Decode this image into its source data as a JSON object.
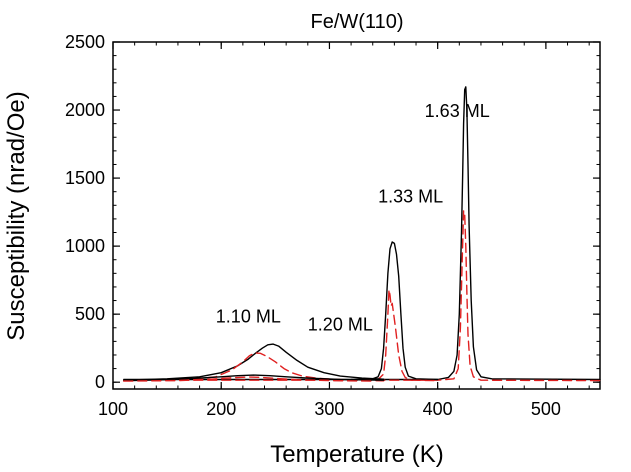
{
  "chart_data": {
    "type": "line",
    "title": "Fe/W(110)",
    "xlabel": "Temperature (K)",
    "ylabel": "Susceptibility (nrad/Oe)",
    "xlim": [
      100,
      550
    ],
    "ylim": [
      -50,
      2500
    ],
    "xticks": [
      100,
      200,
      300,
      400,
      500
    ],
    "yticks": [
      0,
      500,
      1000,
      1500,
      2000,
      2500
    ],
    "grid": false,
    "annotations": [
      {
        "text": "1.63 ML",
        "x": 388,
        "y": 1950
      },
      {
        "text": "1.33 ML",
        "x": 345,
        "y": 1320
      },
      {
        "text": "1.10 ML",
        "x": 195,
        "y": 440
      },
      {
        "text": "1.20 ML",
        "x": 280,
        "y": 380
      }
    ],
    "series": [
      {
        "name": "1.63 ML (real)",
        "color": "#000000",
        "dash": "solid",
        "points": [
          [
            110,
            20
          ],
          [
            300,
            20
          ],
          [
            400,
            20
          ],
          [
            410,
            35
          ],
          [
            415,
            80
          ],
          [
            418,
            200
          ],
          [
            420,
            500
          ],
          [
            422,
            1100
          ],
          [
            423,
            1500
          ],
          [
            424,
            1900
          ],
          [
            425,
            2150
          ],
          [
            426,
            2170
          ],
          [
            427,
            2000
          ],
          [
            428,
            1600
          ],
          [
            429,
            1150
          ],
          [
            431,
            600
          ],
          [
            433,
            260
          ],
          [
            436,
            90
          ],
          [
            440,
            40
          ],
          [
            450,
            25
          ],
          [
            550,
            20
          ]
        ]
      },
      {
        "name": "1.63 ML (imag)",
        "color": "#e02020",
        "dash": "dashed",
        "points": [
          [
            110,
            15
          ],
          [
            400,
            15
          ],
          [
            415,
            25
          ],
          [
            419,
            100
          ],
          [
            421,
            400
          ],
          [
            423,
            1000
          ],
          [
            424,
            1260
          ],
          [
            425,
            1230
          ],
          [
            426,
            1000
          ],
          [
            427,
            650
          ],
          [
            428,
            350
          ],
          [
            430,
            120
          ],
          [
            433,
            40
          ],
          [
            440,
            15
          ],
          [
            550,
            12
          ]
        ]
      },
      {
        "name": "1.33 ML (real)",
        "color": "#000000",
        "dash": "solid",
        "points": [
          [
            320,
            20
          ],
          [
            340,
            25
          ],
          [
            345,
            40
          ],
          [
            348,
            100
          ],
          [
            350,
            250
          ],
          [
            352,
            500
          ],
          [
            354,
            800
          ],
          [
            356,
            980
          ],
          [
            358,
            1030
          ],
          [
            360,
            1020
          ],
          [
            362,
            940
          ],
          [
            364,
            780
          ],
          [
            366,
            500
          ],
          [
            368,
            250
          ],
          [
            370,
            110
          ],
          [
            373,
            45
          ],
          [
            380,
            25
          ],
          [
            400,
            20
          ]
        ]
      },
      {
        "name": "1.33 ML (imag)",
        "color": "#e02020",
        "dash": "dashed",
        "points": [
          [
            330,
            15
          ],
          [
            345,
            20
          ],
          [
            350,
            60
          ],
          [
            352,
            200
          ],
          [
            354,
            500
          ],
          [
            355,
            680
          ],
          [
            356,
            640
          ],
          [
            357,
            560
          ],
          [
            358,
            580
          ],
          [
            359,
            520
          ],
          [
            361,
            400
          ],
          [
            364,
            200
          ],
          [
            367,
            80
          ],
          [
            370,
            35
          ],
          [
            375,
            15
          ],
          [
            400,
            12
          ]
        ]
      },
      {
        "name": "1.20 ML (real)",
        "color": "#000000",
        "dash": "solid",
        "points": [
          [
            110,
            15
          ],
          [
            150,
            25
          ],
          [
            180,
            40
          ],
          [
            200,
            70
          ],
          [
            215,
            120
          ],
          [
            225,
            170
          ],
          [
            232,
            215
          ],
          [
            238,
            250
          ],
          [
            243,
            275
          ],
          [
            248,
            280
          ],
          [
            253,
            265
          ],
          [
            260,
            220
          ],
          [
            270,
            160
          ],
          [
            280,
            110
          ],
          [
            295,
            70
          ],
          [
            310,
            45
          ],
          [
            330,
            30
          ],
          [
            350,
            22
          ]
        ]
      },
      {
        "name": "1.20 ML (imag)",
        "color": "#e02020",
        "dash": "dashed",
        "points": [
          [
            110,
            10
          ],
          [
            170,
            18
          ],
          [
            195,
            40
          ],
          [
            210,
            90
          ],
          [
            220,
            150
          ],
          [
            226,
            195
          ],
          [
            231,
            215
          ],
          [
            236,
            212
          ],
          [
            242,
            190
          ],
          [
            250,
            150
          ],
          [
            258,
            100
          ],
          [
            265,
            70
          ],
          [
            275,
            45
          ],
          [
            290,
            28
          ],
          [
            320,
            15
          ],
          [
            350,
            10
          ]
        ]
      },
      {
        "name": "1.10 ML (real)",
        "color": "#000000",
        "dash": "solid",
        "points": [
          [
            110,
            10
          ],
          [
            150,
            18
          ],
          [
            180,
            30
          ],
          [
            200,
            40
          ],
          [
            215,
            48
          ],
          [
            230,
            52
          ],
          [
            245,
            48
          ],
          [
            260,
            40
          ],
          [
            280,
            30
          ],
          [
            310,
            20
          ],
          [
            350,
            15
          ]
        ]
      },
      {
        "name": "1.10 ML (imag)",
        "color": "#e02020",
        "dash": "dashed",
        "points": [
          [
            110,
            8
          ],
          [
            160,
            12
          ],
          [
            190,
            22
          ],
          [
            210,
            32
          ],
          [
            225,
            38
          ],
          [
            235,
            36
          ],
          [
            250,
            28
          ],
          [
            270,
            18
          ],
          [
            300,
            12
          ],
          [
            340,
            8
          ]
        ]
      }
    ]
  }
}
